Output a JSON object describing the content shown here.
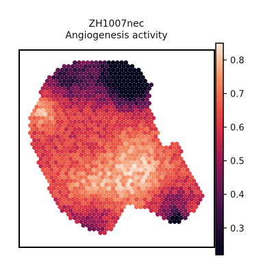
{
  "chart_data": {
    "type": "heatmap",
    "title": "ZH1007nec",
    "subtitle": "Angiogenesis activity",
    "xlabel": "",
    "ylabel": "",
    "colormap": "rocket",
    "colorbar": {
      "range": [
        0.22,
        0.85
      ],
      "ticks": [
        0.3,
        0.4,
        0.5,
        0.6,
        0.7,
        0.8
      ],
      "tick_labels": [
        "0.3",
        "0.4",
        "0.5",
        "0.6",
        "0.7",
        "0.8"
      ],
      "position": "right"
    },
    "grid": false,
    "spot_layout": "hexagonal spatial transcriptomics spots",
    "regions": [
      {
        "name": "top dark cluster",
        "value": 0.28
      },
      {
        "name": "upper-left highlight",
        "value": 0.75
      },
      {
        "name": "center-right highlight",
        "value": 0.78
      },
      {
        "name": "lower-right dark spot",
        "value": 0.25
      },
      {
        "name": "overall typical",
        "value": 0.6
      }
    ]
  }
}
